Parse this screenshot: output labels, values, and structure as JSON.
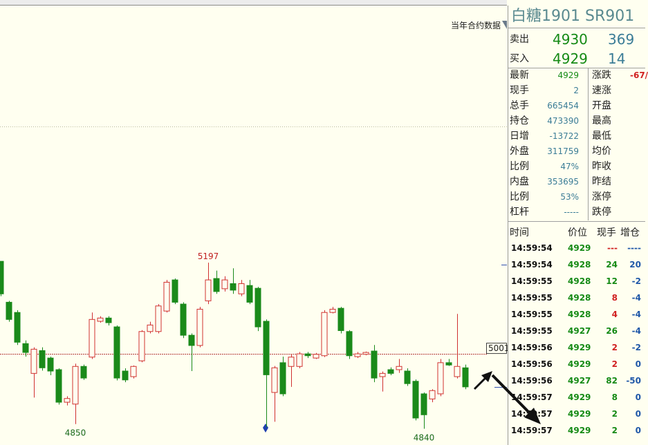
{
  "header": {
    "contract_data_label": "当年合约数据"
  },
  "chart_data": {
    "type": "candlestick",
    "ylim": [
      4805,
      5750
    ],
    "up_color": "#d03030",
    "down_color": "#1a8a1a",
    "high_label": 5197,
    "low_labels": [
      4850,
      4840
    ],
    "last_price": 5001,
    "candles": [
      {
        "open": 5200,
        "high": 5200,
        "low": 5125,
        "close": 5130
      },
      {
        "open": 5112,
        "high": 5115,
        "low": 5070,
        "close": 5075
      },
      {
        "open": 5090,
        "high": 5095,
        "low": 5020,
        "close": 5026
      },
      {
        "open": 5023,
        "high": 5030,
        "low": 4995,
        "close": 5004
      },
      {
        "open": 4959,
        "high": 5015,
        "low": 4907,
        "close": 5011
      },
      {
        "open": 5008,
        "high": 5015,
        "low": 4965,
        "close": 4971
      },
      {
        "open": 4992,
        "high": 4995,
        "low": 4955,
        "close": 4964
      },
      {
        "open": 4967,
        "high": 4970,
        "low": 4892,
        "close": 4897
      },
      {
        "open": 4897,
        "high": 4910,
        "low": 4890,
        "close": 4905
      },
      {
        "open": 4893,
        "high": 4980,
        "low": 4850,
        "close": 4974
      },
      {
        "open": 4974,
        "high": 4978,
        "low": 4945,
        "close": 4949
      },
      {
        "open": 4994,
        "high": 5090,
        "low": 4990,
        "close": 5075
      },
      {
        "open": 5071,
        "high": 5082,
        "low": 5068,
        "close": 5078
      },
      {
        "open": 5078,
        "high": 5082,
        "low": 5062,
        "close": 5068
      },
      {
        "open": 5059,
        "high": 5062,
        "low": 4944,
        "close": 4949
      },
      {
        "open": 4964,
        "high": 4970,
        "low": 4940,
        "close": 4945
      },
      {
        "open": 4952,
        "high": 4976,
        "low": 4948,
        "close": 4974
      },
      {
        "open": 4986,
        "high": 5052,
        "low": 4983,
        "close": 5049
      },
      {
        "open": 5049,
        "high": 5070,
        "low": 5045,
        "close": 5063
      },
      {
        "open": 5049,
        "high": 5108,
        "low": 5045,
        "close": 5104
      },
      {
        "open": 5093,
        "high": 5160,
        "low": 5090,
        "close": 5155
      },
      {
        "open": 5160,
        "high": 5163,
        "low": 5108,
        "close": 5112
      },
      {
        "open": 5108,
        "high": 5112,
        "low": 5035,
        "close": 5041
      },
      {
        "open": 5041,
        "high": 5045,
        "low": 4964,
        "close": 5019
      },
      {
        "open": 5019,
        "high": 5102,
        "low": 5015,
        "close": 5097
      },
      {
        "open": 5115,
        "high": 5197,
        "low": 5108,
        "close": 5160
      },
      {
        "open": 5163,
        "high": 5180,
        "low": 5130,
        "close": 5135
      },
      {
        "open": 5141,
        "high": 5168,
        "low": 5135,
        "close": 5160
      },
      {
        "open": 5152,
        "high": 5185,
        "low": 5130,
        "close": 5138
      },
      {
        "open": 5130,
        "high": 5160,
        "low": 5125,
        "close": 5152
      },
      {
        "open": 5148,
        "high": 5160,
        "low": 5108,
        "close": 5112
      },
      {
        "open": 5142,
        "high": 5145,
        "low": 5050,
        "close": 5059
      },
      {
        "open": 5071,
        "high": 5075,
        "low": 4843,
        "close": 4956
      },
      {
        "open": 4918,
        "high": 4975,
        "low": 4855,
        "close": 4971
      },
      {
        "open": 4982,
        "high": 4995,
        "low": 4910,
        "close": 4915
      },
      {
        "open": 4974,
        "high": 5000,
        "low": 4930,
        "close": 4994
      },
      {
        "open": 4974,
        "high": 5005,
        "low": 4970,
        "close": 5001
      },
      {
        "open": 5001,
        "high": 5005,
        "low": 4992,
        "close": 4997
      },
      {
        "open": 4992,
        "high": 5003,
        "low": 4990,
        "close": 5000
      },
      {
        "open": 4997,
        "high": 5095,
        "low": 4994,
        "close": 5090
      },
      {
        "open": 5090,
        "high": 5102,
        "low": 5088,
        "close": 5097
      },
      {
        "open": 5099,
        "high": 5102,
        "low": 5045,
        "close": 5051
      },
      {
        "open": 5049,
        "high": 5052,
        "low": 4990,
        "close": 4997
      },
      {
        "open": 4995,
        "high": 5005,
        "low": 4992,
        "close": 5001
      },
      {
        "open": 5000,
        "high": 5006,
        "low": 4998,
        "close": 5004
      },
      {
        "open": 5007,
        "high": 5020,
        "low": 4940,
        "close": 4949
      },
      {
        "open": 4952,
        "high": 4963,
        "low": 4920,
        "close": 4959
      },
      {
        "open": 4967,
        "high": 4972,
        "low": 4955,
        "close": 4959
      },
      {
        "open": 4967,
        "high": 4990,
        "low": 4960,
        "close": 4974
      },
      {
        "open": 4964,
        "high": 4970,
        "low": 4932,
        "close": 4937
      },
      {
        "open": 4942,
        "high": 4946,
        "low": 4858,
        "close": 4863
      },
      {
        "open": 4915,
        "high": 4918,
        "low": 4840,
        "close": 4870
      },
      {
        "open": 4904,
        "high": 4925,
        "low": 4897,
        "close": 4922
      },
      {
        "open": 4915,
        "high": 4990,
        "low": 4910,
        "close": 4982
      },
      {
        "open": 4982,
        "high": 4990,
        "low": 4975,
        "close": 4977
      },
      {
        "open": 4952,
        "high": 5087,
        "low": 4948,
        "close": 4974
      },
      {
        "open": 4971,
        "high": 4978,
        "low": 4925,
        "close": 4930
      }
    ]
  },
  "panel": {
    "title": "白糖1901  SR901",
    "ask": {
      "label": "卖出",
      "price": 4930,
      "volume": 369
    },
    "bid": {
      "label": "买入",
      "price": 4929,
      "volume": 14
    },
    "quote_left": [
      {
        "label": "最新",
        "value": 4929
      },
      {
        "label": "现手",
        "value": 2
      },
      {
        "label": "总手",
        "value": 665454
      },
      {
        "label": "持仓",
        "value": 473390
      },
      {
        "label": "日增",
        "value": -13722
      },
      {
        "label": "外盘",
        "value": 311759
      },
      {
        "label": "比例",
        "value": "47%"
      },
      {
        "label": "内盘",
        "value": 353695
      },
      {
        "label": "比例",
        "value": "53%"
      },
      {
        "label": "杠杆",
        "value": "-----"
      }
    ],
    "quote_right": [
      {
        "label": "涨跌",
        "value": "-67/"
      },
      {
        "label": "速涨"
      },
      {
        "label": "开盘"
      },
      {
        "label": "最高"
      },
      {
        "label": "最低"
      },
      {
        "label": "均价"
      },
      {
        "label": "昨收"
      },
      {
        "label": "昨结"
      },
      {
        "label": "涨停"
      },
      {
        "label": "跌停"
      }
    ],
    "trades_header": [
      "时间",
      "价位",
      "现手",
      "增仓"
    ],
    "trades": [
      {
        "time": "14:59:54",
        "price": 4929,
        "qty": "---",
        "change": "----",
        "color": "red"
      },
      {
        "time": "14:59:54",
        "price": 4928,
        "qty": 24,
        "change": 20,
        "color": "green"
      },
      {
        "time": "14:59:55",
        "price": 4928,
        "qty": 12,
        "change": -2,
        "color": "green"
      },
      {
        "time": "14:59:55",
        "price": 4928,
        "qty": 8,
        "change": -4,
        "color": "red"
      },
      {
        "time": "14:59:55",
        "price": 4928,
        "qty": 4,
        "change": -4,
        "color": "red"
      },
      {
        "time": "14:59:55",
        "price": 4927,
        "qty": 26,
        "change": -4,
        "color": "green"
      },
      {
        "time": "14:59:56",
        "price": 4929,
        "qty": 2,
        "change": -2,
        "color": "red"
      },
      {
        "time": "14:59:56",
        "price": 4929,
        "qty": 2,
        "change": 0,
        "color": "red"
      },
      {
        "time": "14:59:56",
        "price": 4927,
        "qty": 82,
        "change": -50,
        "color": "green"
      },
      {
        "time": "14:59:57",
        "price": 4929,
        "qty": 8,
        "change": 0,
        "color": "green"
      },
      {
        "time": "14:59:57",
        "price": 4929,
        "qty": 2,
        "change": 0,
        "color": "green"
      },
      {
        "time": "14:59:57",
        "price": 4929,
        "qty": 2,
        "change": 0,
        "color": "green"
      }
    ]
  }
}
